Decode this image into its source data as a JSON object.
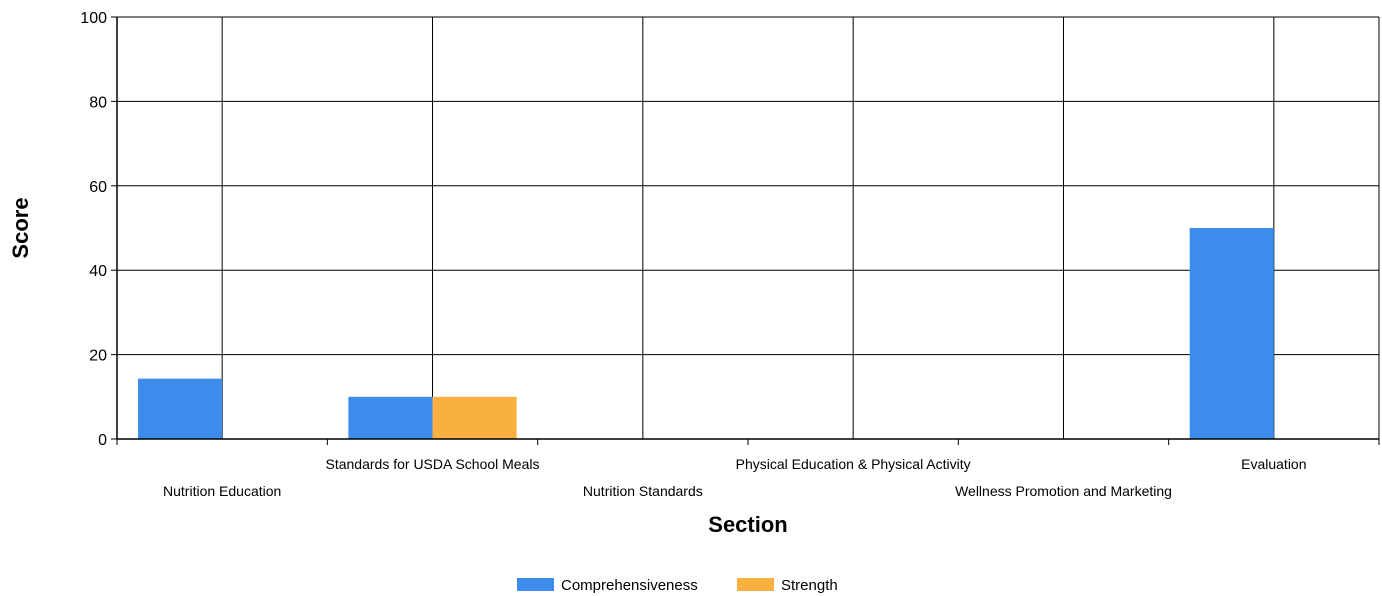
{
  "chart_data": {
    "type": "bar",
    "title": "",
    "xlabel": "Section",
    "ylabel": "Score",
    "ylim": [
      0,
      100
    ],
    "yticks": [
      0,
      20,
      40,
      60,
      80,
      100
    ],
    "grid": true,
    "legend_position": "bottom",
    "categories": [
      "Nutrition Education",
      "Standards for USDA School Meals",
      "Nutrition Standards",
      "Physical Education & Physical Activity",
      "Wellness Promotion and Marketing",
      "Evaluation"
    ],
    "series": [
      {
        "name": "Comprehensiveness",
        "color": "#3d8cec",
        "values": [
          14.3,
          10,
          0,
          0,
          0,
          50
        ]
      },
      {
        "name": "Strength",
        "color": "#f8b141",
        "values": [
          0,
          10,
          0,
          0,
          0,
          0
        ]
      }
    ]
  }
}
